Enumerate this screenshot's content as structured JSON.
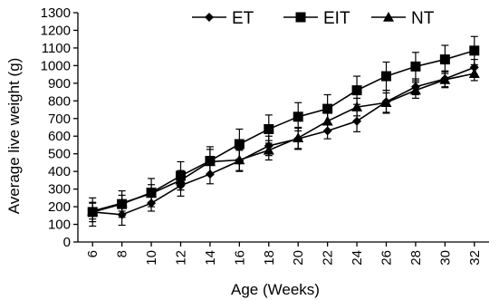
{
  "chart_data": {
    "type": "line",
    "xlabel": "Age (Weeks)",
    "ylabel": "Average live weight (g)",
    "x": [
      6,
      8,
      10,
      12,
      14,
      16,
      18,
      20,
      22,
      24,
      26,
      28,
      30,
      32
    ],
    "xlim": [
      5,
      33
    ],
    "ylim": [
      0,
      1300
    ],
    "yticks": [
      0,
      100,
      200,
      300,
      400,
      500,
      600,
      700,
      800,
      900,
      1000,
      1100,
      1200,
      1300
    ],
    "grid": false,
    "legend_position": "top",
    "series": [
      {
        "name": "ET",
        "marker": "diamond",
        "values": [
          170,
          155,
          220,
          320,
          385,
          460,
          545,
          585,
          630,
          685,
          795,
          880,
          925,
          990
        ],
        "error": [
          55,
          60,
          45,
          60,
          55,
          60,
          55,
          60,
          45,
          60,
          65,
          45,
          45,
          45
        ]
      },
      {
        "name": "EIT",
        "marker": "square",
        "values": [
          170,
          215,
          280,
          375,
          460,
          555,
          640,
          710,
          755,
          860,
          940,
          995,
          1035,
          1085
        ],
        "error": [
          80,
          75,
          80,
          80,
          80,
          85,
          80,
          80,
          80,
          80,
          80,
          80,
          80,
          80
        ]
      },
      {
        "name": "NT",
        "marker": "triangle",
        "values": [
          175,
          220,
          275,
          350,
          455,
          465,
          520,
          590,
          685,
          765,
          790,
          860,
          920,
          955
        ],
        "error": [
          45,
          45,
          50,
          55,
          70,
          60,
          55,
          60,
          55,
          50,
          55,
          45,
          45,
          40
        ]
      }
    ]
  }
}
